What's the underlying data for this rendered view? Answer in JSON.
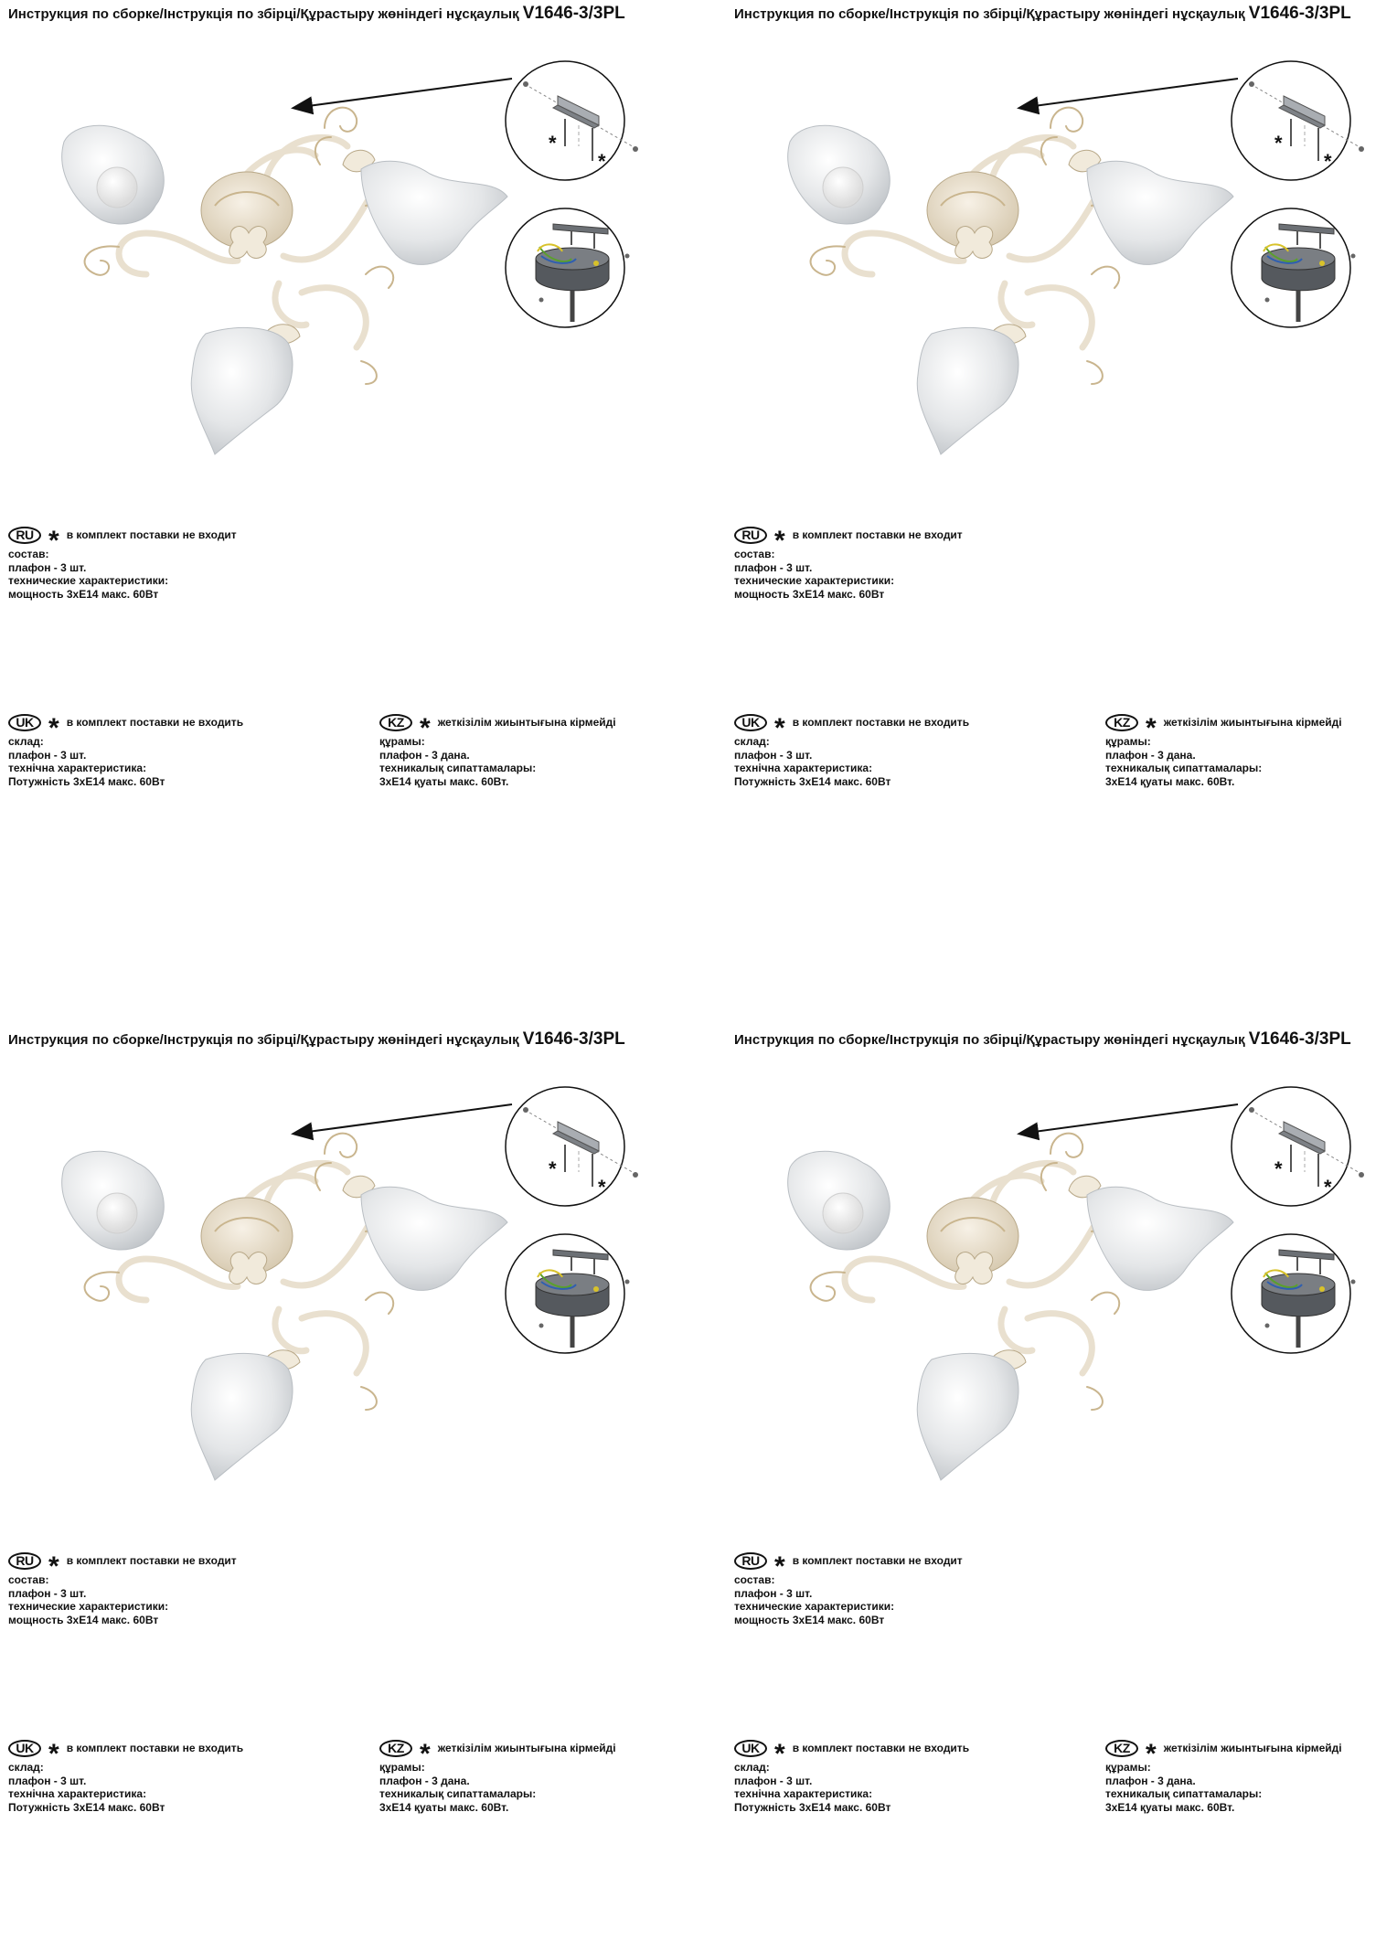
{
  "title": {
    "text": "Инструкция по сборке/Інструкція по збірці/Құрастыру жөніндегі нұсқаулық",
    "model": "V1646-3/3PL"
  },
  "sections": {
    "ru": {
      "badge": "RU",
      "star": "*",
      "note": "в комплект поставки не входит",
      "lines": [
        "состав:",
        "плафон - 3 шт.",
        "технические характеристики:",
        "мощность 3хЕ14 макс. 60Вт"
      ]
    },
    "uk": {
      "badge": "UK",
      "star": "*",
      "note": "в комплект поставки не входить",
      "lines": [
        "склад:",
        "плафон - 3 шт.",
        "технічна характеристика:",
        "Потужність 3хЕ14 макс. 60Вт"
      ]
    },
    "kz": {
      "badge": "KZ",
      "star": "*",
      "note": "жеткізілім жиынтығына кірмейді",
      "lines": [
        "құрамы:",
        "плафон - 3 дана.",
        "техникалық сипаттамалары:",
        "3хЕ14 қуаты макс. 60Вт."
      ]
    }
  },
  "diagram": {
    "asterisk": "*"
  },
  "colors": {
    "text": "#111111",
    "metal": "#7a7d82",
    "cream": "#eee6d6",
    "gold": "#c9b58e",
    "glass": "#e6e8ea",
    "wire_green": "#5aa02c",
    "wire_blue": "#2f5fb0",
    "wire_yellow": "#d8c22a"
  }
}
